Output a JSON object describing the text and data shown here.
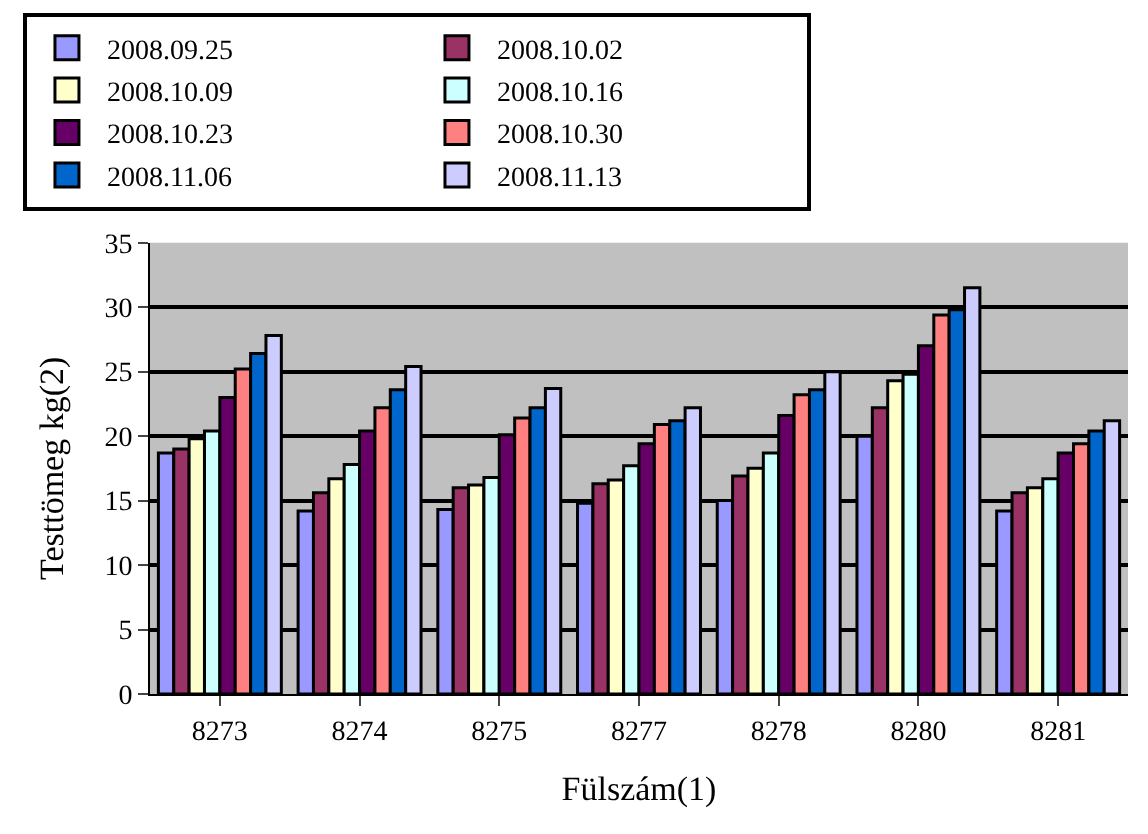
{
  "chart_data": {
    "type": "bar",
    "xlabel": "Fülszám(1)",
    "ylabel": "Testtömeg kg(2)",
    "categories": [
      "8273",
      "8274",
      "8275",
      "8277",
      "8278",
      "8280",
      "8281"
    ],
    "series": [
      {
        "name": "2008.09.25",
        "color": "#9999ff",
        "values": [
          18.7,
          14.2,
          14.3,
          14.8,
          15.0,
          20.0,
          14.2
        ]
      },
      {
        "name": "2008.10.02",
        "color": "#993366",
        "values": [
          19.0,
          15.6,
          16.0,
          16.3,
          16.9,
          22.2,
          15.6
        ]
      },
      {
        "name": "2008.10.09",
        "color": "#ffffcc",
        "values": [
          19.8,
          16.7,
          16.2,
          16.6,
          17.5,
          24.3,
          16.0
        ]
      },
      {
        "name": "2008.10.16",
        "color": "#ccffff",
        "values": [
          20.4,
          17.8,
          16.8,
          17.7,
          18.7,
          24.8,
          16.7
        ]
      },
      {
        "name": "2008.10.23",
        "color": "#660066",
        "values": [
          23.0,
          20.4,
          20.1,
          19.4,
          21.6,
          27.0,
          18.7
        ]
      },
      {
        "name": "2008.10.30",
        "color": "#ff8080",
        "values": [
          25.2,
          22.2,
          21.4,
          20.9,
          23.2,
          29.4,
          19.4
        ]
      },
      {
        "name": "2008.11.06",
        "color": "#0066cc",
        "values": [
          26.4,
          23.6,
          22.2,
          21.2,
          23.6,
          29.8,
          20.4
        ]
      },
      {
        "name": "2008.11.13",
        "color": "#ccccff",
        "values": [
          27.8,
          25.4,
          23.7,
          22.2,
          25.0,
          31.5,
          21.2
        ]
      }
    ],
    "ylim": [
      0,
      35
    ],
    "yticks": [
      0,
      5,
      10,
      15,
      20,
      25,
      30,
      35
    ],
    "grid": "y",
    "legend": "top"
  }
}
